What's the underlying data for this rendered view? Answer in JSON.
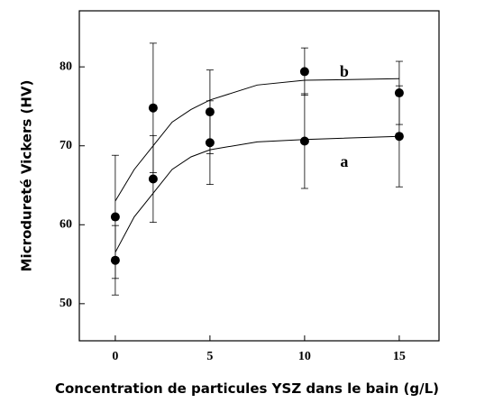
{
  "chart_data": {
    "type": "scatter",
    "x_label": "Concentration de particules YSZ dans le bain (g/L)",
    "y_label": "Microdureté Vickers (HV)",
    "x": [
      0,
      2,
      5,
      10,
      15
    ],
    "xlim": [
      -1.9,
      17.1
    ],
    "xticks": [
      0,
      5,
      10,
      15
    ],
    "ylim": [
      45.3,
      87.1
    ],
    "yticks": [
      50,
      60,
      70,
      80
    ],
    "color": "#000000",
    "series": [
      {
        "name": "a",
        "values": [
          55.5,
          65.8,
          70.4,
          70.6,
          71.2
        ],
        "errors": [
          4.4,
          5.5,
          5.3,
          6.0,
          6.4
        ],
        "fit_x": [
          0,
          1,
          2,
          3,
          4,
          5,
          7.5,
          10,
          15
        ],
        "fit_values": [
          56.5,
          61,
          64,
          67,
          68.6,
          69.5,
          70.5,
          70.8,
          71.2
        ]
      },
      {
        "name": "b",
        "values": [
          61.0,
          74.8,
          74.3,
          79.4,
          76.7
        ],
        "errors": [
          7.8,
          8.2,
          5.3,
          3.0,
          4.0
        ],
        "fit_x": [
          0,
          1,
          2,
          3,
          4,
          5,
          7.5,
          10,
          15
        ],
        "fit_values": [
          63,
          67,
          70,
          73,
          74.6,
          75.8,
          77.7,
          78.3,
          78.5
        ]
      }
    ]
  }
}
